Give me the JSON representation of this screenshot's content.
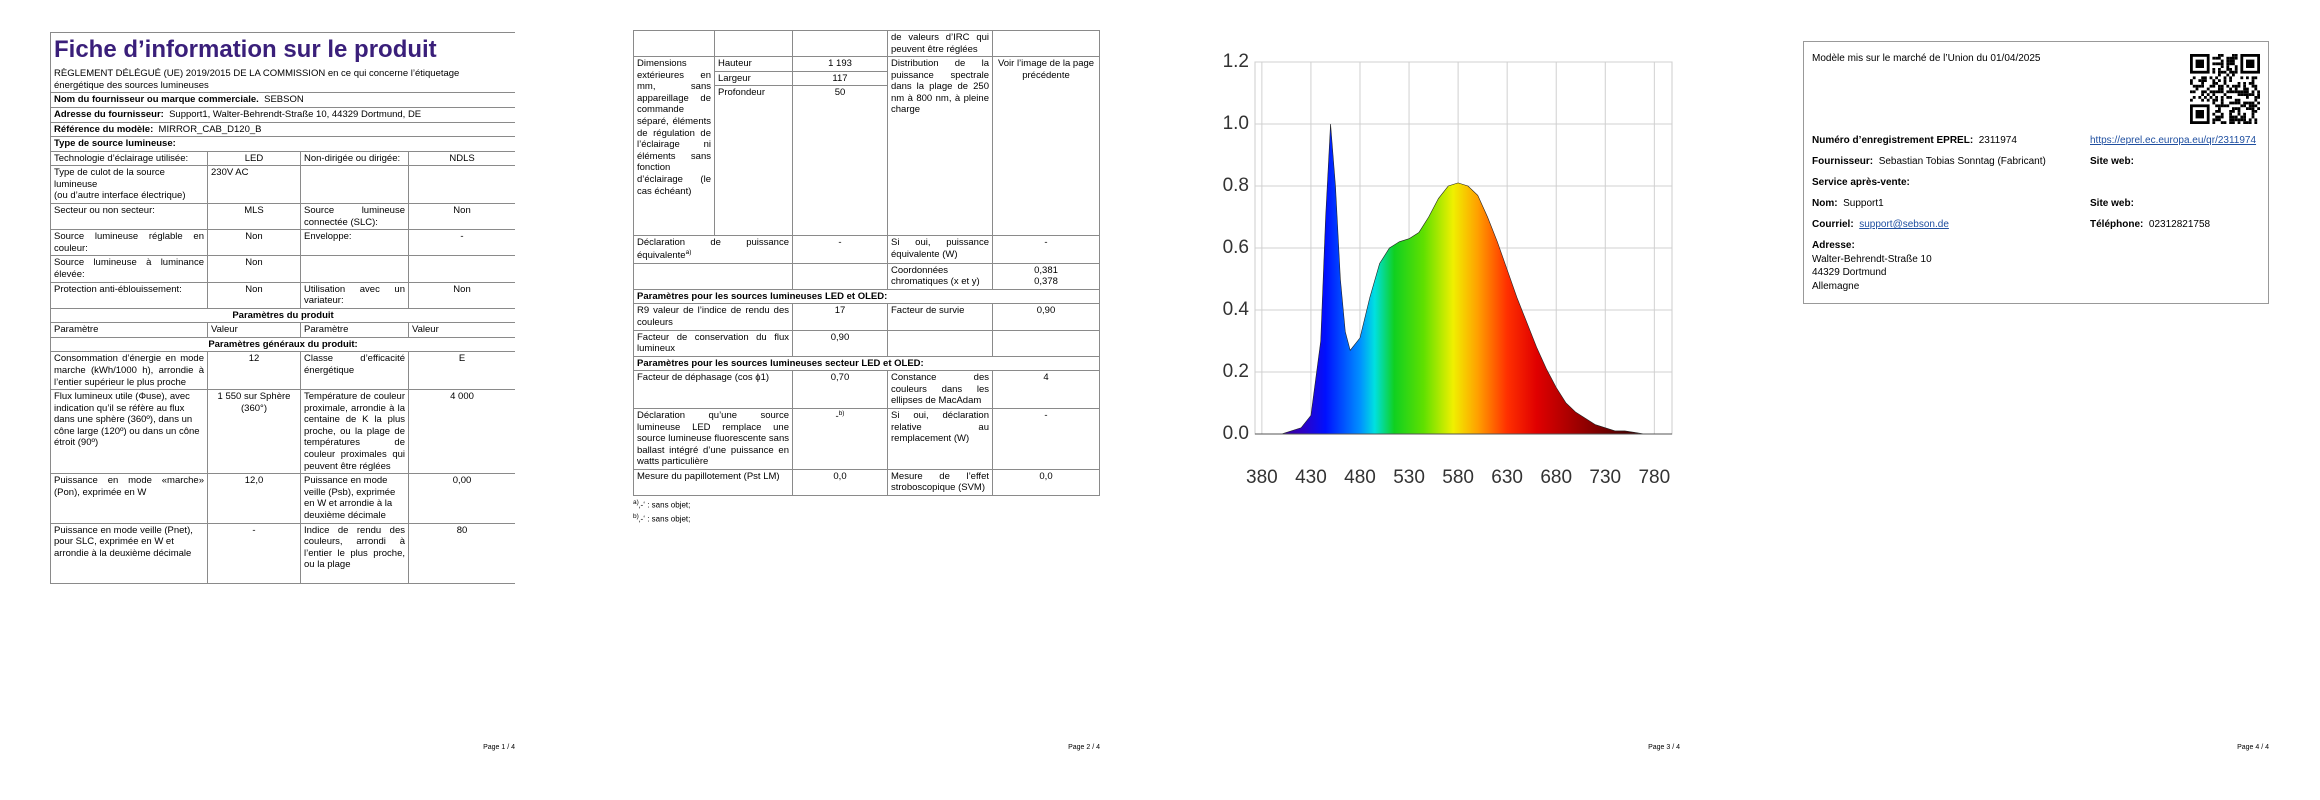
{
  "page1": {
    "title": "Fiche d’information sur le produit",
    "regulation": "RÈGLEMENT DÉLÉGUÉ (UE) 2019/2015 DE LA COMMISSION en ce qui concerne l’étiquetage énergétique des sources lumineuses",
    "supplier": {
      "label": "Nom du fournisseur ou marque commerciale.",
      "value": "SEBSON"
    },
    "address": {
      "label": "Adresse du fournisseur:",
      "value": "Support1, Walter-Behrendt-Straße 10, 44329 Dortmund, DE"
    },
    "model": {
      "label": "Référence du modèle:",
      "value": "MIRROR_CAB_D120_B"
    },
    "light_source_type": "Type de source lumineuse:",
    "rows": [
      [
        "Technologie d’éclairage utilisée:",
        "LED",
        "Non-dirigée ou dirigée:",
        "NDLS"
      ],
      [
        "Type de culot de la source lumineuse",
        "230V AC"
      ],
      [
        "Secteur ou non secteur:",
        "MLS",
        "Source lumineuse connectée (SLC):",
        "Non"
      ],
      [
        "Source lumineuse réglable en couleur:",
        "Non",
        "Enveloppe:",
        "-"
      ],
      [
        "Source lumineuse à luminance élevée:",
        "Non"
      ],
      [
        "Protection anti-éblouissement:",
        "Non",
        "Utilisation avec un variateur:",
        "Non"
      ]
    ],
    "cap_note": "(ou d’autre interface électrique)",
    "product_parameters": "Paramètres du produit",
    "header": [
      "Paramètre",
      "Valeur",
      "Paramètre",
      "Valeur"
    ],
    "general_parameters": "Paramètres généraux du produit:",
    "params": [
      [
        "Consommation d’énergie en mode marche (kWh/1000 h), arrondie à l’entier supérieur le plus proche",
        "12",
        "Classe d’efficacité énergétique",
        "E"
      ],
      [
        "Flux lumineux utile (Φuse), avec indication qu’il se réfère au flux dans une sphère (360º), dans un cône large (120º) ou dans un cône étroit (90º)",
        "1 550 sur Sphère (360°)",
        "Température de couleur proximale, arrondie à la centaine de K la plus proche, ou la plage de températures de couleur proximales qui peuvent être réglées",
        "4 000"
      ],
      [
        "Puissance en mode «marche» (Pon), exprimée en W",
        "12,0",
        "Puissance en mode veille (Psb), exprimée en W et arrondie à la deuxième décimale",
        "0,00"
      ],
      [
        "Puissance en mode veille (Pnet), pour SLC, exprimée en W et arrondie à la deuxième décimale",
        "-",
        "Indice de rendu des couleurs, arrondi à l’entier le plus proche, ou la plage",
        "80"
      ]
    ],
    "footer": "Page 1 / 4"
  },
  "page2": {
    "continuation": "de valeurs d’IRC qui peuvent être réglées",
    "dimensions": {
      "label": "Dimensions extérieures en mm, sans appareillage de commande séparé, éléments de régulation de l’éclairage ni éléments sans fonction d’éclairage (le cas échéant)",
      "height": {
        "label": "Hauteur",
        "value": "1 193"
      },
      "width": {
        "label": "Largeur",
        "value": "117"
      },
      "depth": {
        "label": "Profondeur",
        "value": "50"
      }
    },
    "spectral": {
      "label": "Distribution de la puissance spectrale dans la plage de 250 nm à 800 nm, à pleine charge",
      "value": "Voir l’image de la page précédente"
    },
    "equivalent": {
      "label": "Déclaration de puissance équivalente",
      "note": "a)",
      "value": "-",
      "label2": "Si oui, puissance équivalente (W)",
      "value2": "-"
    },
    "chromaticity": {
      "label": "Coordonnées chromatiques (x et y)",
      "values": [
        "0,381",
        "0,378"
      ]
    },
    "led_title": "Paramètres pour les sources lumineuses LED et OLED:",
    "led_rows": [
      [
        "R9 valeur de l’indice de rendu des couleurs",
        "17",
        "Facteur de survie",
        "0,90"
      ],
      [
        "Facteur de conservation du flux lumineux",
        "0,90"
      ]
    ],
    "mains_title": "Paramètres pour les sources lumineuses secteur LED et OLED:",
    "mains_rows": [
      [
        "Facteur de déphasage (cos ϕ1)",
        "0,70",
        "Constance des couleurs dans les ellipses de MacAdam",
        "4"
      ],
      [
        "Déclaration qu’une source lumineuse LED remplace une source lumineuse fluorescente sans ballast intégré d’une puissance en watts particulière",
        "-",
        "Si oui, déclaration relative au remplacement (W)",
        "-"
      ],
      [
        "Mesure du papillotement (Pst LM)",
        "0,0",
        "Mesure de l’effet stroboscopique (SVM)",
        "0,0"
      ]
    ],
    "replacement_note": "b)",
    "notes": [
      {
        "mark": "a)",
        "text": "‚-‘ : sans objet;"
      },
      {
        "mark": "b)",
        "text": "‚-‘ : sans objet;"
      }
    ],
    "footer": "Page 2 / 4"
  },
  "page3": {
    "chart": {
      "type": "area",
      "x": [
        380,
        390,
        400,
        410,
        420,
        430,
        440,
        445,
        450,
        455,
        460,
        465,
        470,
        480,
        490,
        500,
        510,
        520,
        530,
        540,
        550,
        560,
        570,
        580,
        590,
        600,
        610,
        620,
        630,
        640,
        650,
        660,
        670,
        680,
        690,
        700,
        710,
        720,
        730,
        740,
        750,
        760,
        770,
        780
      ],
      "values": [
        0,
        0,
        0,
        0.01,
        0.02,
        0.06,
        0.3,
        0.7,
        1.0,
        0.8,
        0.5,
        0.33,
        0.27,
        0.31,
        0.44,
        0.55,
        0.6,
        0.62,
        0.63,
        0.65,
        0.7,
        0.76,
        0.8,
        0.81,
        0.8,
        0.77,
        0.7,
        0.62,
        0.53,
        0.44,
        0.36,
        0.28,
        0.21,
        0.15,
        0.1,
        0.07,
        0.05,
        0.03,
        0.02,
        0.01,
        0.01,
        0.005,
        0,
        0
      ],
      "xlim": [
        373,
        798
      ],
      "ylim": [
        0,
        1.2
      ],
      "xticks": [
        380,
        430,
        480,
        530,
        580,
        630,
        680,
        730,
        780
      ],
      "yticks": [
        {
          "value": 0,
          "label": "0.0"
        },
        0.2,
        0.4,
        0.6,
        0.8,
        {
          "value": 1,
          "label": "1.0"
        },
        1.2
      ],
      "grid": true
    },
    "footer": "Page 3 / 4"
  },
  "page4": {
    "placed_on_market": "Modèle mis sur le marché de l’Union du 01/04/2025",
    "eprel": {
      "label": "Numéro d’enregistrement EPREL:",
      "value": "2311974",
      "link": "https://eprel.ec.europa.eu/qr/2311974"
    },
    "supplier": {
      "label": "Fournisseur:",
      "value": "Sebastian Tobias Sonntag (Fabricant)",
      "website": "Site web:"
    },
    "service": "Service après-vente:",
    "name": {
      "label": "Nom:",
      "value": "Support1",
      "website": "Site web:"
    },
    "email": {
      "label": "Courriel:",
      "value": "support@sebson.de",
      "phone_label": "Téléphone:",
      "phone": "02312821758"
    },
    "address": {
      "label": "Adresse:",
      "lines": [
        "Walter-Behrendt-Straße 10",
        "44329 Dortmund",
        "Allemagne"
      ]
    },
    "footer": "Page 4 / 4"
  }
}
